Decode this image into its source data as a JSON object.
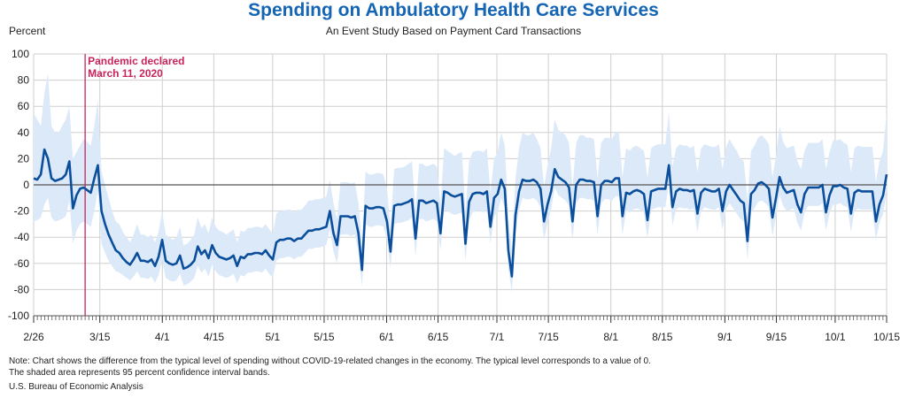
{
  "chart_data": {
    "type": "line",
    "title": "Spending on Ambulatory Health Care Services",
    "subtitle": "An Event Study Based on Payment Card Transactions",
    "ylabel": "Percent",
    "ylim": [
      -100,
      100
    ],
    "yticks": [
      100,
      80,
      60,
      40,
      20,
      0,
      -20,
      -40,
      -60,
      -80,
      -100
    ],
    "x_start": "2020-02-26",
    "x_end": "2020-10-15",
    "x_ticks": [
      {
        "label": "2/26",
        "date": "2020-02-26"
      },
      {
        "label": "3/15",
        "date": "2020-03-15"
      },
      {
        "label": "4/1",
        "date": "2020-04-01"
      },
      {
        "label": "4/15",
        "date": "2020-04-15"
      },
      {
        "label": "5/1",
        "date": "2020-05-01"
      },
      {
        "label": "5/15",
        "date": "2020-05-15"
      },
      {
        "label": "6/1",
        "date": "2020-06-01"
      },
      {
        "label": "6/15",
        "date": "2020-06-15"
      },
      {
        "label": "7/1",
        "date": "2020-07-01"
      },
      {
        "label": "7/15",
        "date": "2020-07-15"
      },
      {
        "label": "8/1",
        "date": "2020-08-01"
      },
      {
        "label": "8/15",
        "date": "2020-08-15"
      },
      {
        "label": "9/1",
        "date": "2020-09-01"
      },
      {
        "label": "9/15",
        "date": "2020-09-15"
      },
      {
        "label": "10/1",
        "date": "2020-10-01"
      },
      {
        "label": "10/15",
        "date": "2020-10-15"
      }
    ],
    "grid": true,
    "annotation": {
      "line1": "Pandemic declared",
      "line2": "March 11, 2020",
      "date": "2020-03-11",
      "color": "#c8235a"
    },
    "line_color": "#0b4f9c",
    "band_color": "#dce9f8",
    "series_values": [
      5,
      4,
      8,
      27,
      20,
      5,
      3,
      4,
      5,
      8,
      18,
      -18,
      -8,
      -3,
      -2,
      -4,
      -6,
      5,
      15,
      -20,
      -30,
      -38,
      -44,
      -50,
      -52,
      -56,
      -59,
      -61,
      -57,
      -52,
      -58,
      -58,
      -59,
      -57,
      -62,
      -55,
      -42,
      -58,
      -60,
      -61,
      -60,
      -54,
      -64,
      -63,
      -61,
      -58,
      -47,
      -53,
      -50,
      -56,
      -46,
      -52,
      -55,
      -56,
      -57,
      -56,
      -54,
      -62,
      -55,
      -56,
      -53,
      -53,
      -52,
      -52,
      -53,
      -50,
      -54,
      -57,
      -44,
      -42,
      -42,
      -41,
      -41,
      -43,
      -41,
      -41,
      -38,
      -35,
      -35,
      -34,
      -34,
      -33,
      -32,
      -20,
      -37,
      -46,
      -24,
      -24,
      -24,
      -25,
      -24,
      -37,
      -65,
      -16,
      -18,
      -18,
      -17,
      -17,
      -18,
      -28,
      -51,
      -16,
      -15,
      -15,
      -14,
      -13,
      -11,
      -41,
      -12,
      -12,
      -14,
      -13,
      -12,
      -14,
      -37,
      -5,
      -6,
      -8,
      -9,
      -8,
      -7,
      -45,
      -13,
      -7,
      -6,
      -6,
      -7,
      -5,
      -32,
      -10,
      -7,
      4,
      -3,
      -50,
      -70,
      -23,
      -5,
      4,
      3,
      3,
      4,
      2,
      -3,
      -28,
      -15,
      -5,
      12,
      6,
      4,
      2,
      -2,
      -28,
      0,
      4,
      4,
      3,
      3,
      2,
      -24,
      0,
      3,
      3,
      2,
      5,
      5,
      -24,
      -6,
      -7,
      -5,
      -4,
      -5,
      -7,
      -27,
      -5,
      -4,
      -3,
      -3,
      -3,
      15,
      -17,
      -5,
      -3,
      -4,
      -4,
      -5,
      -4,
      -22,
      -6,
      -3,
      -4,
      -5,
      -5,
      -3,
      -20,
      -5,
      0,
      -4,
      -8,
      -12,
      -14,
      -43,
      -7,
      -4,
      1,
      2,
      0,
      -3,
      -25,
      -10,
      6,
      -2,
      -6,
      -5,
      -4,
      -15,
      -21,
      -7,
      -2,
      -2,
      -2,
      -2,
      0,
      -21,
      -8,
      -1,
      -1,
      0,
      -2,
      -3,
      -22,
      -6,
      -4,
      -5,
      -5,
      -5,
      -5,
      -28,
      -15,
      -8,
      8
    ],
    "band_lower": [
      -28,
      -27,
      -25,
      -15,
      -10,
      -25,
      -28,
      -27,
      -26,
      -24,
      -12,
      -45,
      -35,
      -30,
      -28,
      -30,
      -32,
      -20,
      -5,
      -45,
      -52,
      -58,
      -62,
      -66,
      -67,
      -69,
      -71,
      -73,
      -70,
      -66,
      -71,
      -71,
      -72,
      -70,
      -75,
      -69,
      -58,
      -71,
      -73,
      -74,
      -73,
      -68,
      -77,
      -76,
      -74,
      -71,
      -62,
      -67,
      -64,
      -70,
      -61,
      -66,
      -69,
      -70,
      -71,
      -70,
      -68,
      -75,
      -69,
      -70,
      -67,
      -67,
      -66,
      -66,
      -67,
      -64,
      -68,
      -71,
      -58,
      -56,
      -56,
      -55,
      -55,
      -57,
      -55,
      -55,
      -52,
      -49,
      -49,
      -48,
      -48,
      -47,
      -46,
      -34,
      -51,
      -60,
      -38,
      -38,
      -38,
      -39,
      -38,
      -51,
      -78,
      -30,
      -32,
      -32,
      -31,
      -31,
      -32,
      -42,
      -64,
      -30,
      -29,
      -29,
      -28,
      -27,
      -25,
      -54,
      -26,
      -26,
      -28,
      -27,
      -26,
      -28,
      -50,
      -19,
      -20,
      -22,
      -23,
      -22,
      -21,
      -58,
      -27,
      -21,
      -20,
      -20,
      -21,
      -19,
      -45,
      -24,
      -21,
      -10,
      -17,
      -64,
      -82,
      -37,
      -19,
      -10,
      -11,
      -11,
      -10,
      -12,
      -17,
      -42,
      -29,
      -19,
      -2,
      -8,
      -10,
      -12,
      -16,
      -42,
      -14,
      -10,
      -10,
      -11,
      -11,
      -12,
      -38,
      -14,
      -11,
      -11,
      -12,
      -9,
      -9,
      -38,
      -20,
      -21,
      -19,
      -18,
      -19,
      -21,
      -41,
      -19,
      -18,
      -17,
      -17,
      -17,
      1,
      -31,
      -19,
      -17,
      -18,
      -18,
      -19,
      -18,
      -36,
      -20,
      -17,
      -18,
      -19,
      -19,
      -17,
      -34,
      -19,
      -14,
      -18,
      -22,
      -26,
      -28,
      -57,
      -21,
      -18,
      -13,
      -12,
      -14,
      -17,
      -39,
      -24,
      -8,
      -16,
      -20,
      -19,
      -18,
      -29,
      -35,
      -21,
      -16,
      -16,
      -16,
      -16,
      -14,
      -35,
      -22,
      -15,
      -15,
      -14,
      -16,
      -17,
      -36,
      -20,
      -18,
      -19,
      -19,
      -19,
      -19,
      -42,
      -29,
      -22,
      -6
    ],
    "band_upper": [
      55,
      50,
      45,
      70,
      85,
      45,
      40,
      40,
      45,
      50,
      60,
      20,
      25,
      30,
      35,
      33,
      30,
      45,
      65,
      10,
      0,
      -10,
      -20,
      -28,
      -30,
      -36,
      -40,
      -44,
      -38,
      -30,
      -38,
      -38,
      -40,
      -38,
      -44,
      -36,
      -20,
      -38,
      -40,
      -42,
      -40,
      -32,
      -46,
      -45,
      -42,
      -38,
      -25,
      -33,
      -30,
      -37,
      -25,
      -32,
      -35,
      -36,
      -38,
      -36,
      -34,
      -44,
      -35,
      -36,
      -33,
      -33,
      -32,
      -32,
      -33,
      -30,
      -34,
      -37,
      -22,
      -20,
      -20,
      -19,
      -19,
      -21,
      -19,
      -19,
      -16,
      -12,
      -12,
      -11,
      -11,
      -10,
      -9,
      4,
      -14,
      -26,
      2,
      2,
      2,
      1,
      2,
      -14,
      -45,
      10,
      8,
      8,
      9,
      9,
      8,
      -3,
      -32,
      12,
      13,
      13,
      14,
      16,
      18,
      -20,
      16,
      16,
      14,
      15,
      16,
      14,
      -15,
      28,
      26,
      24,
      22,
      24,
      25,
      -20,
      18,
      25,
      26,
      26,
      25,
      28,
      -6,
      20,
      25,
      40,
      30,
      -25,
      -50,
      5,
      28,
      40,
      38,
      38,
      40,
      35,
      28,
      -2,
      15,
      28,
      50,
      42,
      40,
      38,
      32,
      -2,
      32,
      38,
      38,
      36,
      36,
      35,
      5,
      32,
      36,
      36,
      35,
      40,
      40,
      6,
      28,
      26,
      29,
      30,
      28,
      26,
      5,
      28,
      30,
      31,
      31,
      31,
      55,
      14,
      28,
      31,
      30,
      30,
      28,
      30,
      10,
      28,
      31,
      30,
      29,
      29,
      31,
      12,
      29,
      35,
      30,
      26,
      20,
      18,
      -12,
      26,
      30,
      36,
      38,
      35,
      31,
      6,
      22,
      45,
      33,
      28,
      29,
      30,
      18,
      12,
      26,
      32,
      32,
      32,
      32,
      35,
      12,
      25,
      34,
      34,
      35,
      32,
      31,
      10,
      28,
      30,
      29,
      29,
      29,
      29,
      2,
      18,
      26,
      55
    ]
  },
  "notes": {
    "line1": "Note: Chart shows the difference from the typical level of spending without COVID-19-related changes in the economy. The typical level corresponds to a value of 0.",
    "line2": "The shaded area represents 95 percent confidence interval bands."
  },
  "source": "U.S. Bureau of Economic Analysis"
}
